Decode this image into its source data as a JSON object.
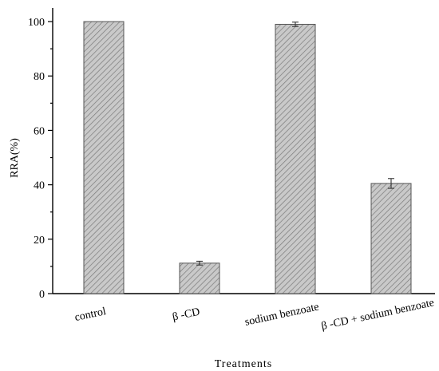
{
  "chart_data": {
    "type": "bar",
    "categories": [
      "control",
      "β -CD",
      "sodium benzoate",
      "β -CD + sodium benzoate"
    ],
    "values": [
      100,
      11.2,
      99,
      40.5
    ],
    "errors": [
      0,
      0.7,
      0.8,
      1.8
    ],
    "xlabel": "Treatments",
    "ylabel": "RRA(%)",
    "ylim": [
      0,
      105
    ],
    "yticks": [
      0,
      20,
      40,
      60,
      80,
      100
    ],
    "bar_color": "#c8c8c8",
    "hatch": "diagonal",
    "grid": false
  }
}
